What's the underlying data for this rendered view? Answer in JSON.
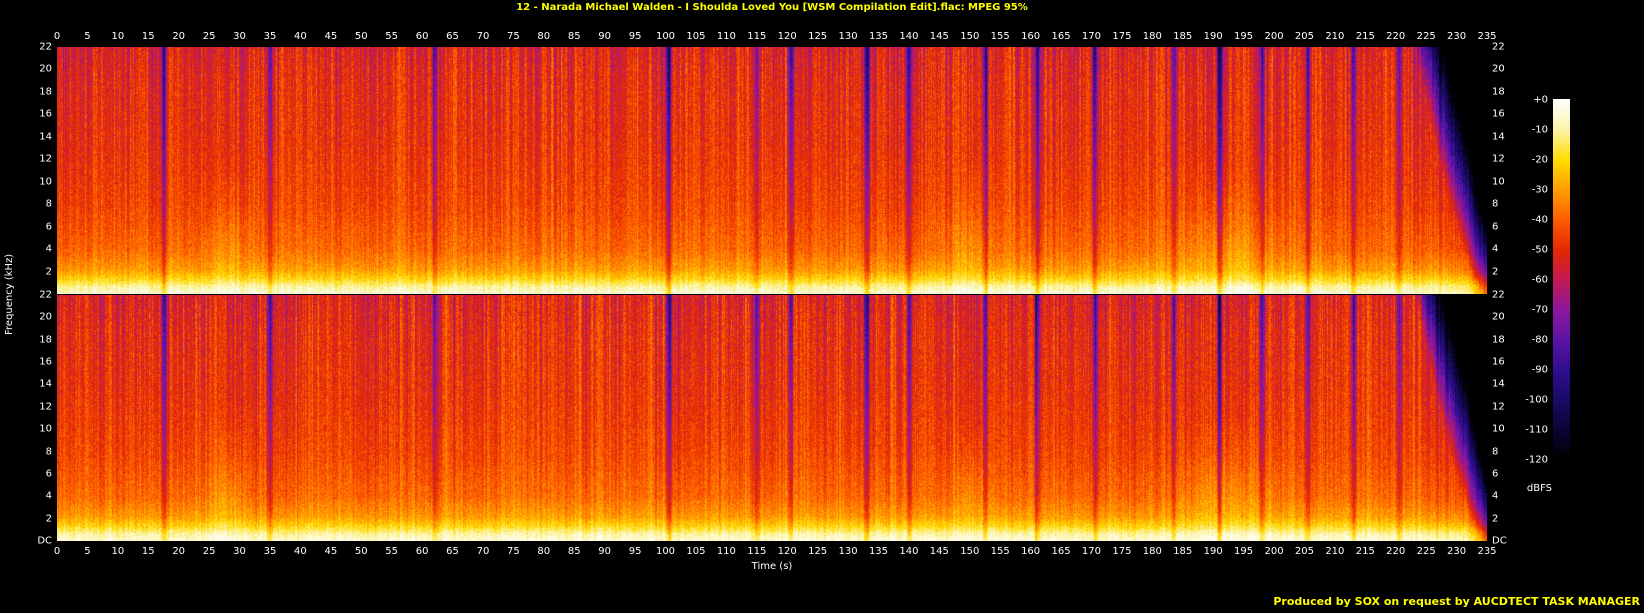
{
  "title": {
    "text": "12 - Narada Michael Walden - I Shoulda Loved You [WSM Compilation Edit].flac: MPEG 95%",
    "color": "#ffff00"
  },
  "axes": {
    "time_label": "Time (s)",
    "freq_label": "Frequency (kHz)",
    "time_ticks": [
      0,
      5,
      10,
      15,
      20,
      25,
      30,
      35,
      40,
      45,
      50,
      55,
      60,
      65,
      70,
      75,
      80,
      85,
      90,
      95,
      100,
      105,
      110,
      115,
      120,
      125,
      130,
      135,
      140,
      145,
      150,
      155,
      160,
      165,
      170,
      175,
      180,
      185,
      190,
      195,
      200,
      205,
      210,
      215,
      220,
      225,
      230,
      235
    ],
    "freq_ticks": [
      22,
      20,
      18,
      16,
      14,
      12,
      10,
      8,
      6,
      4,
      2
    ],
    "dc_label": "DC"
  },
  "legend": {
    "labels": [
      "+0",
      "-10",
      "-20",
      "-30",
      "-40",
      "-50",
      "-60",
      "-70",
      "-80",
      "-90",
      "-100",
      "-110",
      "-120"
    ],
    "unit": "dBFS"
  },
  "footer": {
    "text": "Produced by SOX on request by AUCDTECT TASK MANAGER",
    "color": "#ffff00"
  },
  "colors": {
    "background": "#000000",
    "tick_text": "#ffffff"
  },
  "chart_data": {
    "type": "heatmap",
    "subtype": "stereo-spectrogram",
    "channels": [
      "channel-1",
      "channel-2"
    ],
    "x_axis": {
      "label": "Time (s)",
      "min": 0,
      "max": 235,
      "tick_step": 5
    },
    "y_axis": {
      "label": "Frequency (kHz)",
      "min": 0,
      "max": 22,
      "tick_step": 2
    },
    "z_axis": {
      "label": "dBFS",
      "min": -120,
      "max": 0,
      "tick_step": 10
    },
    "grid": false,
    "legend_position": "right",
    "palette": [
      {
        "t": 0.0,
        "c": "#000000"
      },
      {
        "t": 0.083,
        "c": "#0b0433"
      },
      {
        "t": 0.167,
        "c": "#1a0a66"
      },
      {
        "t": 0.25,
        "c": "#2f0d8e"
      },
      {
        "t": 0.333,
        "c": "#5c14a6"
      },
      {
        "t": 0.417,
        "c": "#8e179e"
      },
      {
        "t": 0.5,
        "c": "#c21a54"
      },
      {
        "t": 0.583,
        "c": "#e42800"
      },
      {
        "t": 0.667,
        "c": "#fe5d00"
      },
      {
        "t": 0.75,
        "c": "#ff9e00"
      },
      {
        "t": 0.833,
        "c": "#ffdd00"
      },
      {
        "t": 0.917,
        "c": "#fcf4a8"
      },
      {
        "t": 1.0,
        "c": "#ffffff"
      }
    ],
    "spectrum_profile_db": [
      [
        0,
        -4
      ],
      [
        0.03,
        -9
      ],
      [
        0.06,
        -20
      ],
      [
        0.1,
        -30
      ],
      [
        0.18,
        -38
      ],
      [
        0.35,
        -44
      ],
      [
        0.6,
        -48
      ],
      [
        0.85,
        -50
      ],
      [
        1,
        -53
      ]
    ],
    "features": {
      "quiet_gaps_s": [
        17.5,
        35,
        62,
        100.5,
        115,
        120.5,
        133,
        140,
        152.5,
        161,
        170.5,
        183.5,
        191,
        198,
        205.5,
        213,
        220.5
      ],
      "hot_zones": [
        {
          "t": 28,
          "w": 3,
          "db": 7
        },
        {
          "t": 150,
          "w": 3,
          "db": 6
        },
        {
          "t": 192,
          "w": 8,
          "db": 7
        }
      ],
      "fade_out_start_s": 223
    }
  }
}
